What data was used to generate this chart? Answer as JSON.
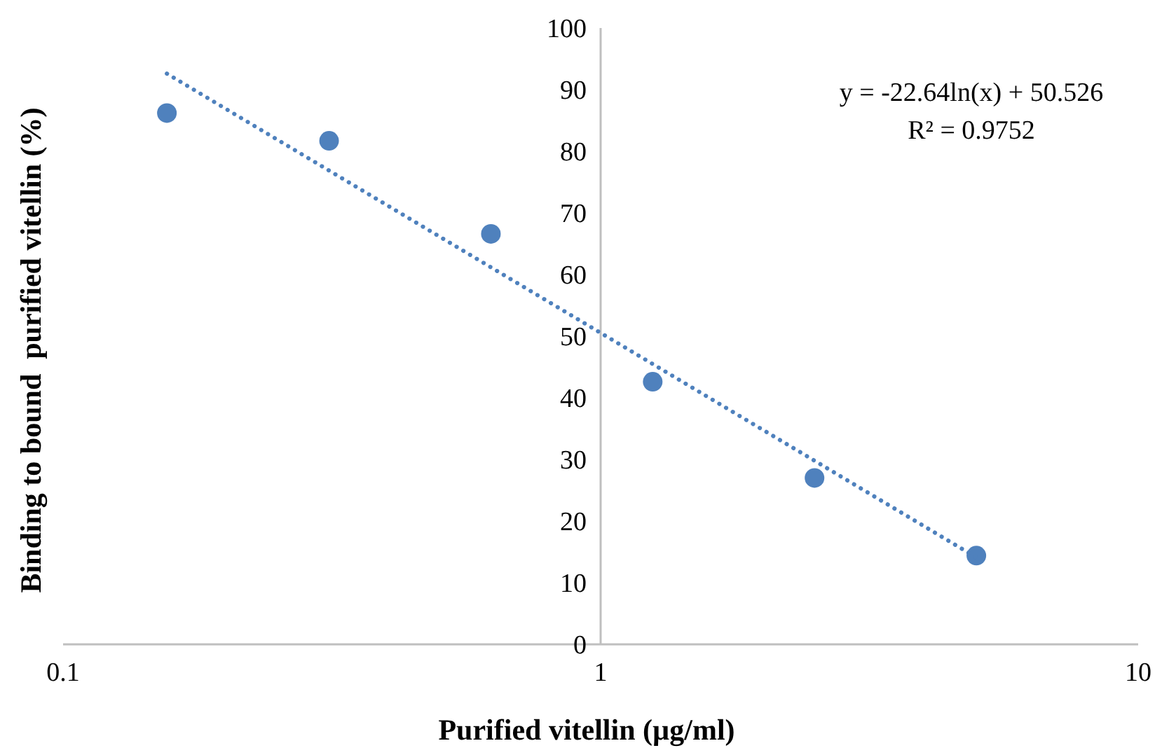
{
  "chart_data": {
    "type": "scatter",
    "xlabel": "Purified vitellin (µg/ml)",
    "ylabel": "Binding to bound  purified vitellin (%)",
    "log": "x",
    "xlim": [
      0.1,
      10
    ],
    "xticks": [
      0.1,
      1,
      10
    ],
    "ylim": [
      0,
      100
    ],
    "yticks": [
      0,
      10,
      20,
      30,
      40,
      50,
      60,
      70,
      80,
      90,
      100
    ],
    "grid": false,
    "marker": "circle",
    "series": [
      {
        "color": "#4f81bd",
        "x": [
          0.156,
          0.3125,
          0.625,
          1.25,
          2.5,
          5
        ],
        "values": [
          86.2,
          81.7,
          66.6,
          42.6,
          27,
          14.4
        ]
      },
      {
        "type": "line",
        "color": "#4f81bd",
        "line_style": "dotted",
        "marker": "none",
        "x": [
          0.156,
          5
        ],
        "values": [
          92.6,
          14.1
        ]
      }
    ],
    "annotations": [
      "y = -22.64ln(x) + 50.526",
      "R² = 0.9752"
    ]
  }
}
